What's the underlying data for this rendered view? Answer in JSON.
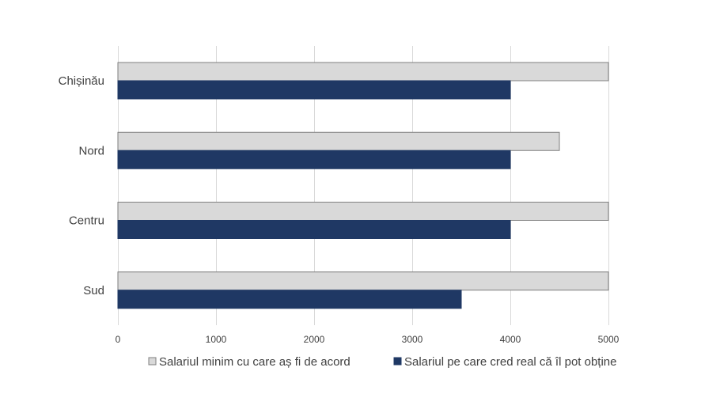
{
  "chart_data": {
    "type": "bar",
    "orientation": "horizontal",
    "categories": [
      "Chișinău",
      "Nord",
      "Centru",
      "Sud"
    ],
    "series": [
      {
        "name": "Salariul minim cu care aș fi de acord",
        "values": [
          5000,
          4500,
          5000,
          5000
        ],
        "color": "#d9d9d9",
        "stroke": "#7f7f7f"
      },
      {
        "name": "Salariul pe care cred real că îl pot obține",
        "values": [
          4000,
          4000,
          4000,
          3500
        ],
        "color": "#1f3864",
        "stroke": "#1f3864"
      }
    ],
    "xticks": [
      0,
      1000,
      2000,
      3000,
      4000,
      5000
    ],
    "xlim": [
      0,
      5000
    ],
    "grid": true,
    "legend": "bottom"
  }
}
